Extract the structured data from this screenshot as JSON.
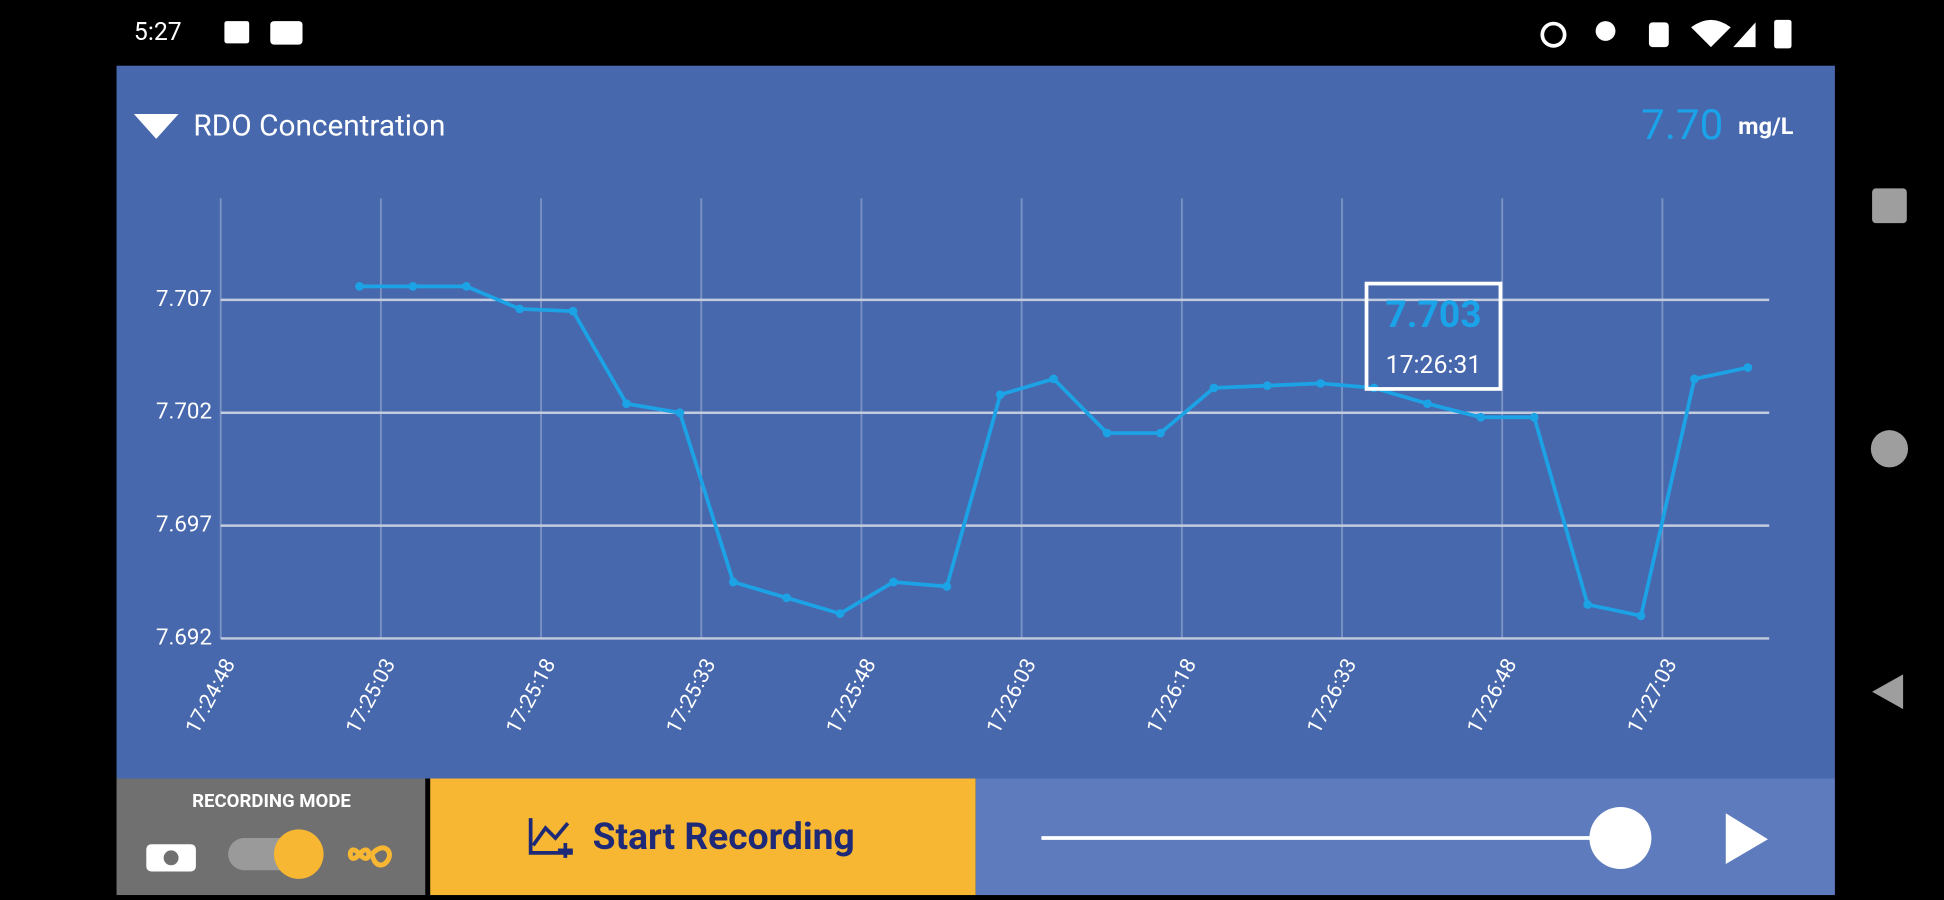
{
  "status_bar": {
    "time": "5:27"
  },
  "header": {
    "title": "RDO Concentration",
    "reading": "7.70",
    "unit": "mg/L"
  },
  "chart_data": {
    "type": "line",
    "x": [
      "17:25:01",
      "17:25:06",
      "17:25:11",
      "17:25:16",
      "17:25:21",
      "17:25:26",
      "17:25:31",
      "17:25:36",
      "17:25:41",
      "17:25:46",
      "17:25:51",
      "17:25:56",
      "17:26:01",
      "17:26:06",
      "17:26:11",
      "17:26:16",
      "17:26:21",
      "17:26:26",
      "17:26:31",
      "17:26:36",
      "17:26:41",
      "17:26:46",
      "17:26:51",
      "17:26:56",
      "17:27:01",
      "17:27:06",
      "17:27:11"
    ],
    "series": [
      {
        "color": "#1ca3e6",
        "values": [
          7.7076,
          7.7076,
          7.7076,
          7.7066,
          7.7065,
          7.7024,
          7.702,
          7.6945,
          7.6938,
          7.6931,
          7.6945,
          7.6943,
          7.7028,
          7.7035,
          7.7011,
          7.7011,
          7.7031,
          7.7032,
          7.7033,
          7.7031,
          7.7024,
          7.7018,
          7.7018,
          7.6935,
          7.693,
          7.7035,
          7.704
        ]
      }
    ],
    "xlim": [
      "17:24:48",
      "17:27:13"
    ],
    "xticks": [
      "17:24:48",
      "17:25:03",
      "17:25:18",
      "17:25:33",
      "17:25:48",
      "17:26:03",
      "17:26:18",
      "17:26:33",
      "17:26:48",
      "17:27:03"
    ],
    "ylim": [
      7.692,
      7.7115
    ],
    "yticks": [
      7.692,
      7.697,
      7.702,
      7.707
    ],
    "grid": true,
    "tooltip": {
      "value": 7.703,
      "time": "17:26:31"
    }
  },
  "controls": {
    "mode_label": "RECORDING MODE",
    "record_button": "Start Recording"
  }
}
